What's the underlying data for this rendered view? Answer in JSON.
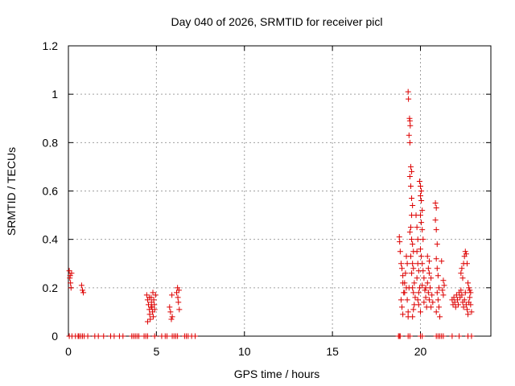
{
  "chart_data": {
    "type": "scatter",
    "title": "Day 040 of 2026, SRMTID for receiver picl",
    "xlabel": "GPS time / hours",
    "ylabel": "SRMTID / TECUs",
    "xlim": [
      0,
      24
    ],
    "ylim": [
      0,
      1.2
    ],
    "xticks": [
      0,
      5,
      10,
      15,
      20
    ],
    "xtick_labels": [
      "0",
      "5",
      "10",
      "15",
      "20"
    ],
    "yticks": [
      0,
      0.2,
      0.4,
      0.6,
      0.8,
      1,
      1.2
    ],
    "ytick_labels": [
      "0",
      "0.2",
      "0.4",
      "0.6",
      "0.8",
      "1",
      "1.2"
    ],
    "grid": true,
    "marker": "+",
    "series": [
      {
        "name": "SRMTID",
        "color": "#dd0000",
        "points": [
          [
            0.05,
            0.27
          ],
          [
            0.1,
            0.25
          ],
          [
            0.12,
            0.22
          ],
          [
            0.15,
            0.2
          ],
          [
            0.08,
            0.24
          ],
          [
            0.18,
            0.26
          ],
          [
            0.75,
            0.21
          ],
          [
            0.8,
            0.19
          ],
          [
            0.85,
            0.18
          ],
          [
            4.45,
            0.17
          ],
          [
            4.5,
            0.15
          ],
          [
            4.55,
            0.13
          ],
          [
            4.6,
            0.11
          ],
          [
            4.62,
            0.09
          ],
          [
            4.65,
            0.07
          ],
          [
            4.7,
            0.16
          ],
          [
            4.72,
            0.14
          ],
          [
            4.75,
            0.12
          ],
          [
            4.78,
            0.1
          ],
          [
            4.8,
            0.18
          ],
          [
            4.82,
            0.08
          ],
          [
            4.85,
            0.15
          ],
          [
            4.88,
            0.13
          ],
          [
            4.9,
            0.11
          ],
          [
            4.5,
            0.06
          ],
          [
            4.95,
            0.17
          ],
          [
            4.6,
            0.16
          ],
          [
            4.7,
            0.12
          ],
          [
            5.75,
            0.12
          ],
          [
            5.8,
            0.1
          ],
          [
            5.85,
            0.07
          ],
          [
            5.9,
            0.08
          ],
          [
            5.88,
            0.17
          ],
          [
            6.15,
            0.18
          ],
          [
            6.2,
            0.2
          ],
          [
            6.25,
            0.14
          ],
          [
            6.3,
            0.11
          ],
          [
            6.22,
            0.16
          ],
          [
            6.28,
            0.19
          ],
          [
            18.8,
            0.41
          ],
          [
            18.82,
            0.39
          ],
          [
            18.85,
            0.35
          ],
          [
            18.9,
            0.3
          ],
          [
            18.95,
            0.28
          ],
          [
            19.0,
            0.25
          ],
          [
            18.9,
            0.15
          ],
          [
            18.95,
            0.12
          ],
          [
            19.0,
            0.09
          ],
          [
            19.05,
            0.18
          ],
          [
            19.1,
            0.22
          ],
          [
            19.15,
            0.26
          ],
          [
            19.2,
            0.2
          ],
          [
            19.25,
            0.15
          ],
          [
            19.3,
            0.1
          ],
          [
            19.3,
            0.08
          ],
          [
            19.35,
            0.2
          ],
          [
            19.25,
            0.3
          ],
          [
            19.2,
            0.33
          ],
          [
            19.1,
            0.18
          ],
          [
            19.0,
            0.22
          ],
          [
            19.3,
            1.01
          ],
          [
            19.32,
            0.98
          ],
          [
            19.4,
            0.89
          ],
          [
            19.42,
            0.87
          ],
          [
            19.38,
            0.9
          ],
          [
            19.35,
            0.83
          ],
          [
            19.4,
            0.8
          ],
          [
            19.45,
            0.7
          ],
          [
            19.5,
            0.68
          ],
          [
            19.4,
            0.66
          ],
          [
            19.45,
            0.62
          ],
          [
            19.5,
            0.57
          ],
          [
            19.55,
            0.54
          ],
          [
            19.5,
            0.5
          ],
          [
            19.45,
            0.45
          ],
          [
            19.4,
            0.43
          ],
          [
            19.5,
            0.4
          ],
          [
            19.55,
            0.38
          ],
          [
            19.6,
            0.35
          ],
          [
            19.45,
            0.33
          ],
          [
            19.55,
            0.3
          ],
          [
            19.6,
            0.28
          ],
          [
            19.5,
            0.26
          ],
          [
            19.65,
            0.22
          ],
          [
            19.55,
            0.2
          ],
          [
            19.6,
            0.18
          ],
          [
            19.7,
            0.16
          ],
          [
            19.65,
            0.13
          ],
          [
            19.6,
            0.11
          ],
          [
            19.55,
            0.08
          ],
          [
            19.75,
            0.5
          ],
          [
            19.8,
            0.45
          ],
          [
            19.85,
            0.4
          ],
          [
            19.8,
            0.35
          ],
          [
            19.85,
            0.3
          ],
          [
            19.9,
            0.27
          ],
          [
            19.8,
            0.24
          ],
          [
            19.95,
            0.2
          ],
          [
            19.9,
            0.18
          ],
          [
            19.85,
            0.15
          ],
          [
            19.9,
            0.13
          ],
          [
            20.0,
            0.1
          ],
          [
            19.95,
            0.64
          ],
          [
            20.0,
            0.62
          ],
          [
            20.05,
            0.6
          ],
          [
            20.0,
            0.58
          ],
          [
            20.05,
            0.56
          ],
          [
            20.1,
            0.52
          ],
          [
            20.0,
            0.5
          ],
          [
            20.05,
            0.47
          ],
          [
            20.1,
            0.44
          ],
          [
            20.15,
            0.4
          ],
          [
            20.0,
            0.36
          ],
          [
            20.05,
            0.33
          ],
          [
            20.1,
            0.3
          ],
          [
            20.15,
            0.27
          ],
          [
            20.2,
            0.24
          ],
          [
            20.1,
            0.21
          ],
          [
            20.25,
            0.19
          ],
          [
            20.3,
            0.16
          ],
          [
            20.2,
            0.14
          ],
          [
            20.35,
            0.12
          ],
          [
            20.3,
            0.2
          ],
          [
            20.4,
            0.22
          ],
          [
            20.45,
            0.18
          ],
          [
            20.5,
            0.15
          ],
          [
            20.55,
            0.2
          ],
          [
            20.6,
            0.24
          ],
          [
            20.65,
            0.17
          ],
          [
            20.7,
            0.14
          ],
          [
            20.6,
            0.12
          ],
          [
            20.5,
            0.26
          ],
          [
            20.45,
            0.28
          ],
          [
            20.4,
            0.33
          ],
          [
            20.5,
            0.31
          ],
          [
            20.85,
            0.55
          ],
          [
            20.9,
            0.53
          ],
          [
            20.85,
            0.48
          ],
          [
            20.9,
            0.44
          ],
          [
            20.95,
            0.38
          ],
          [
            20.9,
            0.32
          ],
          [
            20.95,
            0.28
          ],
          [
            21.0,
            0.25
          ],
          [
            21.05,
            0.2
          ],
          [
            20.95,
            0.18
          ],
          [
            21.0,
            0.15
          ],
          [
            21.05,
            0.12
          ],
          [
            20.9,
            0.1
          ],
          [
            21.1,
            0.08
          ],
          [
            21.2,
            0.31
          ],
          [
            21.3,
            0.23
          ],
          [
            21.35,
            0.21
          ],
          [
            21.25,
            0.19
          ],
          [
            21.3,
            0.17
          ],
          [
            21.8,
            0.15
          ],
          [
            21.85,
            0.13
          ],
          [
            21.9,
            0.16
          ],
          [
            21.95,
            0.14
          ],
          [
            22.0,
            0.12
          ],
          [
            22.05,
            0.17
          ],
          [
            22.1,
            0.15
          ],
          [
            22.15,
            0.13
          ],
          [
            22.2,
            0.18
          ],
          [
            22.25,
            0.16
          ],
          [
            22.3,
            0.19
          ],
          [
            22.35,
            0.17
          ],
          [
            22.4,
            0.14
          ],
          [
            22.45,
            0.12
          ],
          [
            22.5,
            0.15
          ],
          [
            22.55,
            0.18
          ],
          [
            22.6,
            0.13
          ],
          [
            22.65,
            0.11
          ],
          [
            22.7,
            0.09
          ],
          [
            22.75,
            0.14
          ],
          [
            22.8,
            0.16
          ],
          [
            22.85,
            0.13
          ],
          [
            22.9,
            0.1
          ],
          [
            22.3,
            0.26
          ],
          [
            22.35,
            0.28
          ],
          [
            22.4,
            0.24
          ],
          [
            22.45,
            0.3
          ],
          [
            22.5,
            0.33
          ],
          [
            22.55,
            0.35
          ],
          [
            22.6,
            0.34
          ],
          [
            22.65,
            0.3
          ],
          [
            22.7,
            0.22
          ],
          [
            22.75,
            0.2
          ],
          [
            22.8,
            0.19
          ],
          [
            22.85,
            0.18
          ]
        ],
        "zero_x": [
          0.05,
          0.2,
          0.4,
          0.55,
          0.6,
          0.7,
          0.8,
          0.9,
          1.1,
          1.5,
          1.7,
          2.0,
          2.4,
          2.6,
          2.9,
          3.1,
          3.6,
          3.7,
          3.8,
          3.9,
          4.0,
          4.3,
          4.4,
          4.5,
          4.9,
          5.3,
          5.5,
          5.6,
          5.9,
          6.0,
          6.1,
          6.2,
          6.6,
          6.7,
          6.8,
          7.0,
          7.2,
          18.75,
          18.8,
          18.85,
          19.3,
          19.4,
          20.0,
          20.1,
          20.9,
          21.0,
          21.1,
          21.2,
          21.3,
          21.8,
          22.2,
          22.7,
          22.9
        ]
      }
    ]
  }
}
